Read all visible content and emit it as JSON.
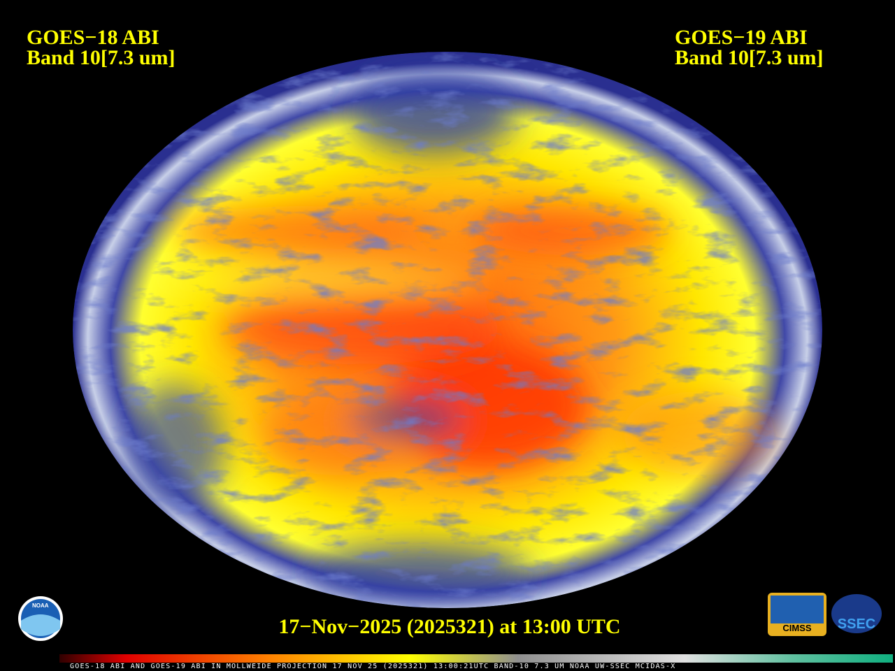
{
  "header": {
    "left": {
      "satellite": "GOES−18 ABI",
      "band": "Band 10[7.3 um]"
    },
    "right": {
      "satellite": "GOES−19 ABI",
      "band": "Band 10[7.3 um]"
    }
  },
  "timestamp": "17−Nov−2025 (2025321) at 13:00 UTC",
  "footer": "GOES-18 ABI AND GOES-19 ABI IN MOLLWEIDE PROJECTION 17 NOV 25 (2025321) 13:00:21UTC BAND-10 7.3 UM NOAA UW-SSEC MCIDAS-X",
  "logos": {
    "noaa": "NOAA",
    "cimss": "CIMSS",
    "ssec": "SSEC"
  }
}
